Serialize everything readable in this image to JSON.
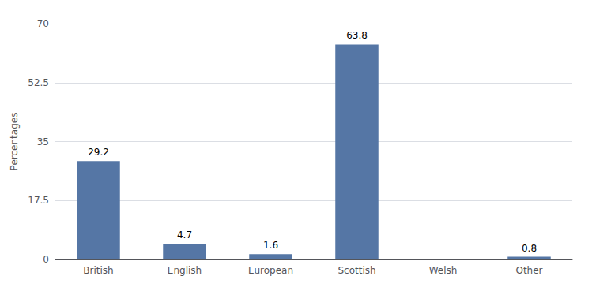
{
  "chart_data": {
    "type": "bar",
    "categories": [
      "British",
      "English",
      "European",
      "Scottish",
      "Welsh",
      "Other"
    ],
    "values": [
      29.2,
      4.7,
      1.6,
      63.8,
      0.0,
      0.8
    ],
    "data_labels": true,
    "value_labels": [
      "29.2",
      "4.7",
      "1.6",
      "63.8",
      null,
      "0.8"
    ],
    "color": "#5576a5",
    "ylabel": "Percentages",
    "ylim": [
      0,
      70
    ],
    "yticks": [
      0,
      17.5,
      35,
      52.5,
      70
    ],
    "grid": true
  }
}
